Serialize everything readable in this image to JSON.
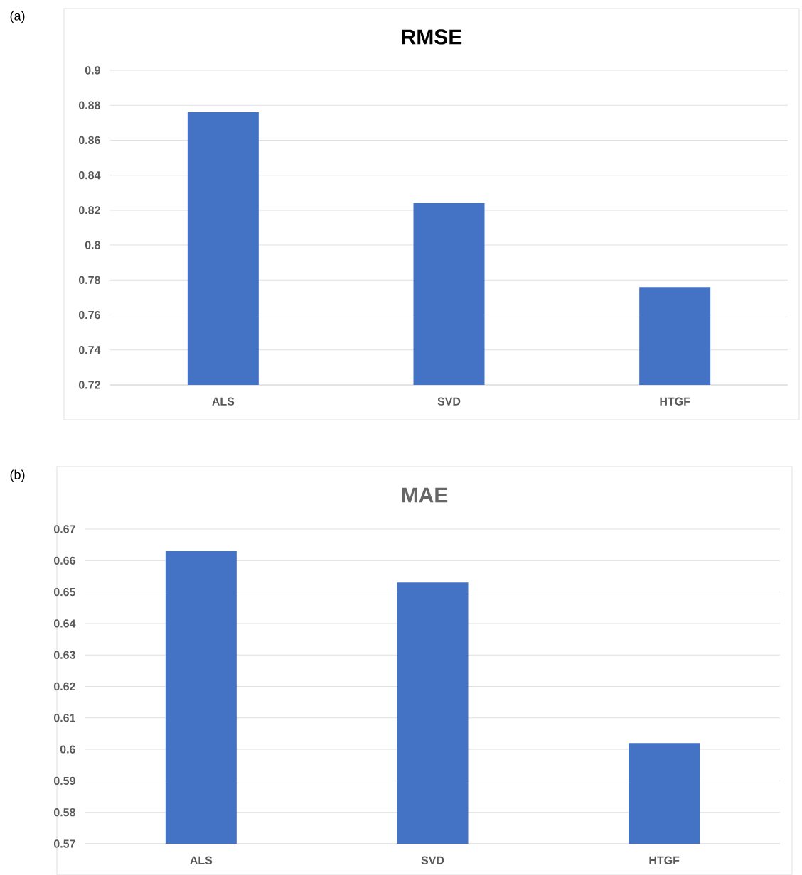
{
  "chart_data": [
    {
      "type": "bar",
      "title": "RMSE",
      "categories": [
        "ALS",
        "SVD",
        "HTGF"
      ],
      "values": [
        0.876,
        0.824,
        0.776
      ],
      "color": "#4472c4",
      "ylim": [
        0.72,
        0.9
      ],
      "yticks": [
        0.72,
        0.74,
        0.76,
        0.78,
        0.8,
        0.82,
        0.84,
        0.86,
        0.88,
        0.9
      ],
      "grid": "y",
      "annotations": [
        "(a)"
      ]
    },
    {
      "type": "bar",
      "title": "MAE",
      "categories": [
        "ALS",
        "SVD",
        "HTGF"
      ],
      "values": [
        0.663,
        0.653,
        0.602
      ],
      "color": "#4472c4",
      "ylim": [
        0.57,
        0.67
      ],
      "yticks": [
        0.57,
        0.58,
        0.59,
        0.6,
        0.61,
        0.62,
        0.63,
        0.64,
        0.65,
        0.66,
        0.67
      ],
      "grid": "y",
      "annotations": [
        "(b)"
      ]
    }
  ]
}
